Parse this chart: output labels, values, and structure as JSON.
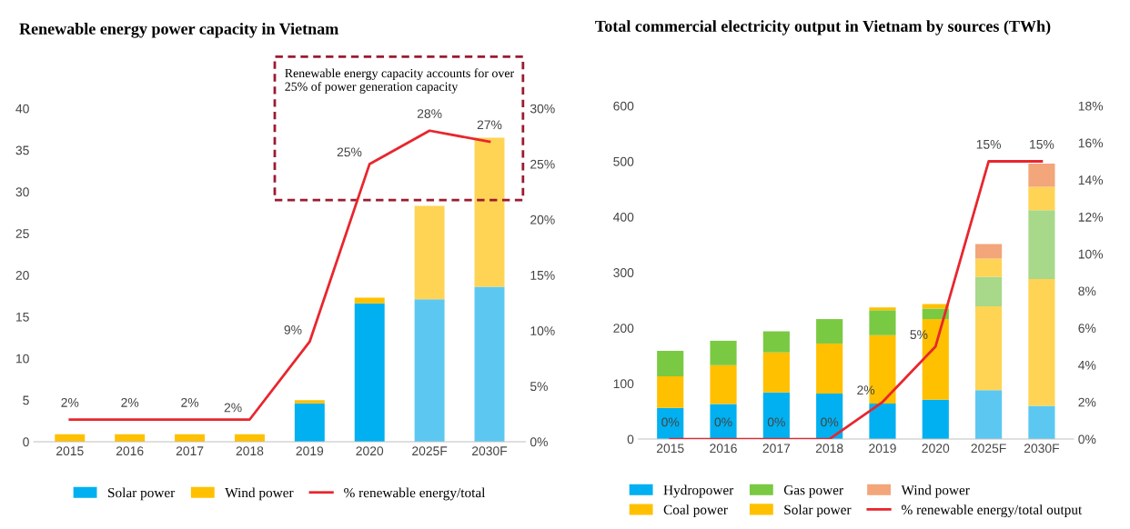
{
  "chart_data": [
    {
      "type": "bar",
      "title": "Renewable energy power capacity in Vietnam",
      "categories": [
        "2015",
        "2016",
        "2017",
        "2018",
        "2019",
        "2020",
        "2025F",
        "2030F"
      ],
      "stacked": true,
      "legend": "bottom",
      "series": [
        {
          "name": "Solar power",
          "color": "#00b0f0",
          "colors": [
            "#00b0f0",
            "#00b0f0",
            "#00b0f0",
            "#00b0f0",
            "#00b0f0",
            "#00b0f0",
            "#5cc8f2",
            "#5cc8f2"
          ],
          "values": [
            0,
            0,
            0,
            0,
            4.6,
            16.6,
            17.1,
            18.6
          ]
        },
        {
          "name": "Wind power",
          "color": "#ffc000",
          "colors": [
            "#ffc000",
            "#ffc000",
            "#ffc000",
            "#ffc000",
            "#ffc000",
            "#ffc000",
            "#ffd455",
            "#ffd455"
          ],
          "values": [
            0.9,
            0.9,
            0.9,
            0.9,
            0.4,
            0.7,
            11.2,
            17.9
          ]
        },
        {
          "name": "% renewable energy/total",
          "type": "line",
          "axis": "y2",
          "color": "#e8262e",
          "values": [
            2,
            2,
            2,
            2,
            9,
            25,
            28,
            27
          ],
          "value_labels": [
            "2%",
            "2%",
            "2%",
            "2%",
            "9%",
            "25%",
            "28%",
            "27%"
          ]
        }
      ],
      "ylim": [
        0,
        40
      ],
      "yticks": [
        0,
        5,
        10,
        15,
        20,
        25,
        30,
        35,
        40
      ],
      "y2lim": [
        0,
        30
      ],
      "y2ticks": [
        {
          "value": 0,
          "label": "0%"
        },
        {
          "value": 5,
          "label": "5%"
        },
        {
          "value": 10,
          "label": "10%"
        },
        {
          "value": 15,
          "label": "15%"
        },
        {
          "value": 20,
          "label": "20%"
        },
        {
          "value": 25,
          "label": "25%"
        },
        {
          "value": 30,
          "label": "30%"
        }
      ],
      "annotations": [
        "Renewable energy capacity accounts for over 25% of power generation capacity"
      ]
    },
    {
      "type": "bar",
      "title": "Total commercial electricity output in Vietnam by sources (TWh)",
      "categories": [
        "2015",
        "2016",
        "2017",
        "2018",
        "2019",
        "2020",
        "2025F",
        "2030F"
      ],
      "stacked": true,
      "legend": "bottom",
      "series": [
        {
          "name": "Hydropower",
          "color": "#00b0f0",
          "colors": [
            "#00b0f0",
            "#00b0f0",
            "#00b0f0",
            "#00b0f0",
            "#00b0f0",
            "#00b0f0",
            "#5cc8f2",
            "#5cc8f2"
          ],
          "values": [
            56,
            63,
            84,
            82,
            64,
            71,
            88,
            60
          ]
        },
        {
          "name": "Coal power",
          "color": "#ffc000",
          "colors": [
            "#ffc000",
            "#ffc000",
            "#ffc000",
            "#ffc000",
            "#ffc000",
            "#ffc000",
            "#ffd455",
            "#ffd455"
          ],
          "values": [
            57,
            70,
            72,
            90,
            123,
            145,
            151,
            228
          ]
        },
        {
          "name": "Gas power",
          "color": "#7ac943",
          "colors": [
            "#7ac943",
            "#7ac943",
            "#7ac943",
            "#7ac943",
            "#7ac943",
            "#7ac943",
            "#a8d88a",
            "#a8d88a"
          ],
          "values": [
            46,
            44,
            38,
            44,
            45,
            19,
            53,
            124
          ]
        },
        {
          "name": "Solar power",
          "color": "#ffc000",
          "colors": [
            "#ffc000",
            "#ffc000",
            "#ffc000",
            "#ffc000",
            "#ffc000",
            "#ffc000",
            "#ffd455",
            "#ffd455"
          ],
          "values": [
            0,
            0,
            0,
            0,
            5,
            8,
            33,
            42
          ]
        },
        {
          "name": "Wind power",
          "color": "#f2a67a",
          "colors": [
            "#ed7d31",
            "#ed7d31",
            "#ed7d31",
            "#ed7d31",
            "#ed7d31",
            "#ed7d31",
            "#f2a67a",
            "#f2a67a"
          ],
          "values": [
            0,
            0,
            0,
            0,
            0,
            0,
            26,
            42
          ]
        },
        {
          "name": "% renewable energy/total output",
          "type": "line",
          "axis": "y2",
          "color": "#e8262e",
          "values": [
            0,
            0,
            0,
            0,
            2,
            5,
            15,
            15
          ],
          "value_labels": [
            "0%",
            "0%",
            "0%",
            "0%",
            "2%",
            "5%",
            "15%",
            "15%"
          ]
        }
      ],
      "ylim": [
        0,
        600
      ],
      "yticks": [
        0,
        100,
        200,
        300,
        400,
        500,
        600
      ],
      "y2lim": [
        0,
        18
      ],
      "y2ticks": [
        {
          "value": 0,
          "label": "0%"
        },
        {
          "value": 2,
          "label": "2%"
        },
        {
          "value": 4,
          "label": "4%"
        },
        {
          "value": 6,
          "label": "6%"
        },
        {
          "value": 8,
          "label": "8%"
        },
        {
          "value": 10,
          "label": "10%"
        },
        {
          "value": 12,
          "label": "12%"
        },
        {
          "value": 14,
          "label": "14%"
        },
        {
          "value": 16,
          "label": "16%"
        },
        {
          "value": 18,
          "label": "18%"
        }
      ]
    }
  ]
}
